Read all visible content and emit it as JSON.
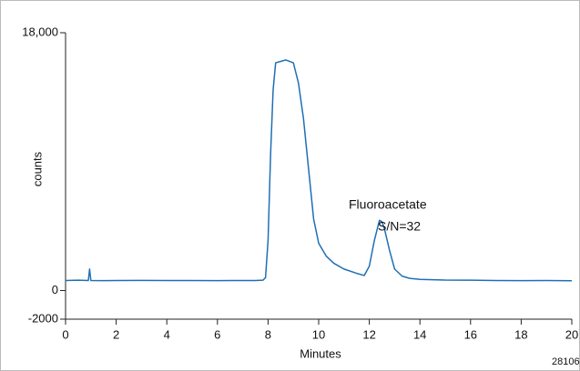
{
  "chart_data": {
    "type": "line",
    "x_label": "Minutes",
    "y_label": "counts",
    "annotations": [
      "Fluoroacetate",
      "S/N=32",
      "28106"
    ],
    "x": [
      0,
      0.5,
      0.9,
      0.95,
      1.0,
      1.5,
      2,
      3,
      4,
      5,
      6,
      7,
      7.5,
      7.8,
      7.9,
      8.0,
      8.1,
      8.2,
      8.3,
      8.5,
      8.7,
      9.0,
      9.2,
      9.4,
      9.6,
      9.8,
      10.0,
      10.3,
      10.6,
      11.0,
      11.5,
      11.8,
      12.0,
      12.2,
      12.4,
      12.5,
      12.6,
      12.8,
      13.0,
      13.3,
      13.6,
      14,
      15,
      16,
      17,
      18,
      19,
      20
    ],
    "series": [
      {
        "color": "#1f6fb5",
        "values": [
          700,
          720,
          700,
          1500,
          700,
          690,
          700,
          710,
          700,
          700,
          690,
          700,
          700,
          720,
          900,
          3500,
          9500,
          14000,
          15900,
          16000,
          16100,
          15900,
          14500,
          12000,
          8500,
          5000,
          3300,
          2400,
          1900,
          1500,
          1200,
          1050,
          1700,
          3500,
          4900,
          4800,
          4300,
          2800,
          1500,
          1000,
          850,
          780,
          730,
          720,
          700,
          690,
          700,
          680
        ]
      }
    ],
    "xlim": [
      0,
      20
    ],
    "xticks": [
      0,
      2,
      4,
      6,
      8,
      10,
      12,
      14,
      16,
      18,
      20
    ],
    "ylim": [
      -2000,
      18000
    ],
    "yticks": [
      -2000,
      0,
      {
        "value": 18000,
        "label": "18,000"
      }
    ],
    "grid": false
  }
}
